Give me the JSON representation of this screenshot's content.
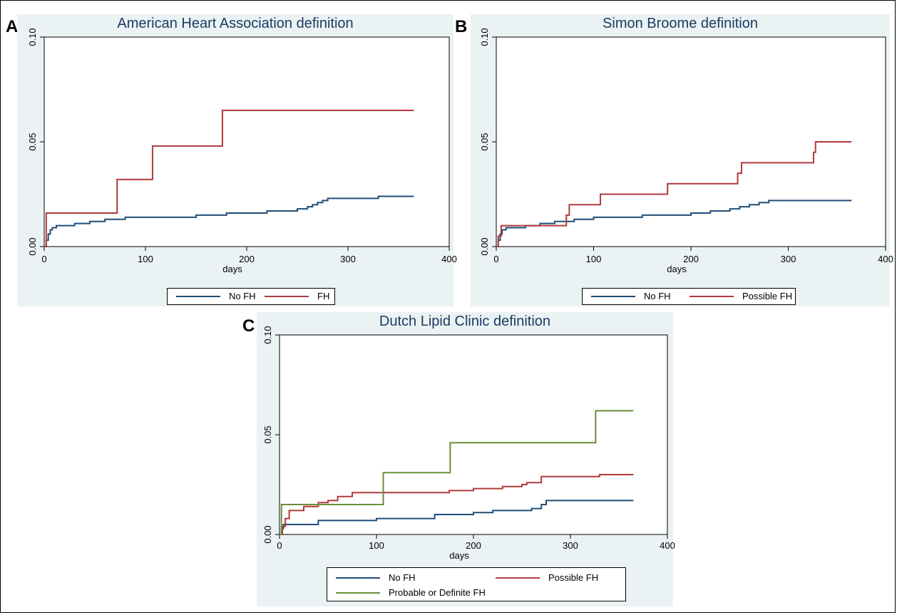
{
  "panels": [
    {
      "letter": "A",
      "title": "American Heart Association definition",
      "legend": [
        {
          "label": "No FH",
          "color": "#1f4e79"
        },
        {
          "label": "FH",
          "color": "#b03a3a"
        }
      ]
    },
    {
      "letter": "B",
      "title": "Simon Broome definition",
      "legend": [
        {
          "label": "No FH",
          "color": "#1f4e79"
        },
        {
          "label": "Possible FH",
          "color": "#b03a3a"
        }
      ]
    },
    {
      "letter": "C",
      "title": "Dutch Lipid Clinic definition",
      "legend": [
        {
          "label": "No FH",
          "color": "#1f4e79"
        },
        {
          "label": "Possible FH",
          "color": "#b03a3a"
        },
        {
          "label": "Probable or Definite FH",
          "color": "#6a8f3a"
        }
      ]
    }
  ],
  "chart_data": [
    {
      "type": "line",
      "step": true,
      "title": "American Heart Association definition",
      "xlabel": "days",
      "ylabel": "",
      "xlim": [
        0,
        400
      ],
      "ylim": [
        0,
        0.1
      ],
      "xticks": [
        "0",
        "100",
        "200",
        "300",
        "400"
      ],
      "yticks": [
        "0.00",
        "0.05",
        "0.10"
      ],
      "grid": false,
      "legend_position": "bottom",
      "series": [
        {
          "name": "No FH",
          "color": "#1f4e79",
          "x": [
            0,
            2,
            4,
            6,
            8,
            12,
            30,
            45,
            60,
            80,
            100,
            150,
            180,
            220,
            240,
            250,
            255,
            260,
            265,
            270,
            275,
            280,
            325,
            330,
            365
          ],
          "y": [
            0.0,
            0.003,
            0.006,
            0.008,
            0.009,
            0.01,
            0.011,
            0.012,
            0.013,
            0.014,
            0.014,
            0.015,
            0.016,
            0.017,
            0.017,
            0.018,
            0.018,
            0.019,
            0.02,
            0.021,
            0.022,
            0.023,
            0.023,
            0.024,
            0.024
          ]
        },
        {
          "name": "FH",
          "color": "#b03a3a",
          "x": [
            0,
            2,
            72,
            107,
            176,
            365
          ],
          "y": [
            0.0,
            0.016,
            0.032,
            0.048,
            0.065,
            0.065
          ]
        }
      ]
    },
    {
      "type": "line",
      "step": true,
      "title": "Simon Broome definition",
      "xlabel": "days",
      "ylabel": "",
      "xlim": [
        0,
        400
      ],
      "ylim": [
        0,
        0.1
      ],
      "xticks": [
        "0",
        "100",
        "200",
        "300",
        "400"
      ],
      "yticks": [
        "0.00",
        "0.05",
        "0.10"
      ],
      "grid": false,
      "legend_position": "bottom",
      "series": [
        {
          "name": "No FH",
          "color": "#1f4e79",
          "x": [
            0,
            2,
            4,
            6,
            10,
            30,
            45,
            60,
            80,
            100,
            150,
            200,
            220,
            240,
            250,
            260,
            270,
            280,
            365
          ],
          "y": [
            0.0,
            0.003,
            0.006,
            0.008,
            0.009,
            0.01,
            0.011,
            0.012,
            0.013,
            0.014,
            0.015,
            0.016,
            0.017,
            0.018,
            0.019,
            0.02,
            0.021,
            0.022,
            0.022
          ]
        },
        {
          "name": "Possible FH",
          "color": "#b03a3a",
          "x": [
            0,
            2,
            5,
            52,
            72,
            75,
            107,
            176,
            248,
            252,
            326,
            328,
            365
          ],
          "y": [
            0.0,
            0.005,
            0.01,
            0.01,
            0.015,
            0.02,
            0.025,
            0.03,
            0.035,
            0.04,
            0.045,
            0.05,
            0.05
          ]
        }
      ]
    },
    {
      "type": "line",
      "step": true,
      "title": "Dutch Lipid Clinic definition",
      "xlabel": "days",
      "ylabel": "",
      "xlim": [
        0,
        400
      ],
      "ylim": [
        0,
        0.1
      ],
      "xticks": [
        "0",
        "100",
        "200",
        "300",
        "400"
      ],
      "yticks": [
        "0.00",
        "0.05",
        "0.10"
      ],
      "grid": false,
      "legend_position": "bottom",
      "series": [
        {
          "name": "No FH",
          "color": "#1f4e79",
          "x": [
            0,
            2,
            4,
            40,
            100,
            160,
            200,
            220,
            260,
            270,
            275,
            365
          ],
          "y": [
            0.0,
            0.003,
            0.005,
            0.007,
            0.008,
            0.01,
            0.011,
            0.012,
            0.013,
            0.015,
            0.017,
            0.017
          ]
        },
        {
          "name": "Possible FH",
          "color": "#b03a3a",
          "x": [
            0,
            3,
            6,
            10,
            25,
            40,
            50,
            60,
            75,
            175,
            200,
            230,
            250,
            255,
            270,
            330,
            365
          ],
          "y": [
            0.0,
            0.004,
            0.008,
            0.012,
            0.014,
            0.016,
            0.017,
            0.019,
            0.021,
            0.022,
            0.023,
            0.024,
            0.025,
            0.026,
            0.029,
            0.03,
            0.03
          ]
        },
        {
          "name": "Probable or Definite FH",
          "color": "#6a8f3a",
          "x": [
            0,
            2,
            107,
            176,
            326,
            365
          ],
          "y": [
            0.0,
            0.015,
            0.031,
            0.046,
            0.062,
            0.062
          ]
        }
      ]
    }
  ]
}
